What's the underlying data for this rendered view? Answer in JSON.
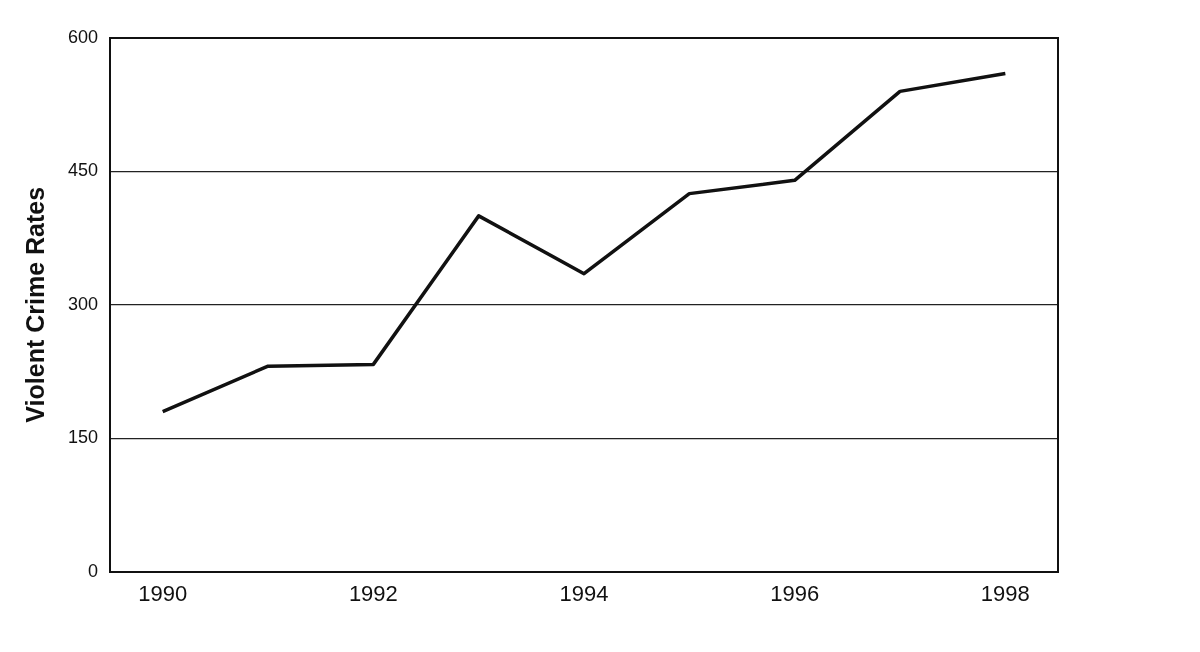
{
  "chart_data": {
    "type": "line",
    "ylabel": "Violent Crime Rates",
    "x": [
      1990,
      1991,
      1992,
      1993,
      1994,
      1995,
      1996,
      1997,
      1998
    ],
    "values": [
      180,
      231,
      233,
      400,
      335,
      425,
      440,
      540,
      560
    ],
    "color": "#111111",
    "xlim": [
      1989.5,
      1998.5
    ],
    "xticks": [
      1990,
      1992,
      1994,
      1996,
      1998
    ],
    "ylim": [
      0,
      600
    ],
    "yticks": [
      0,
      150,
      300,
      450,
      600
    ],
    "grid": "y",
    "marker": "none",
    "line_style": "solid"
  }
}
